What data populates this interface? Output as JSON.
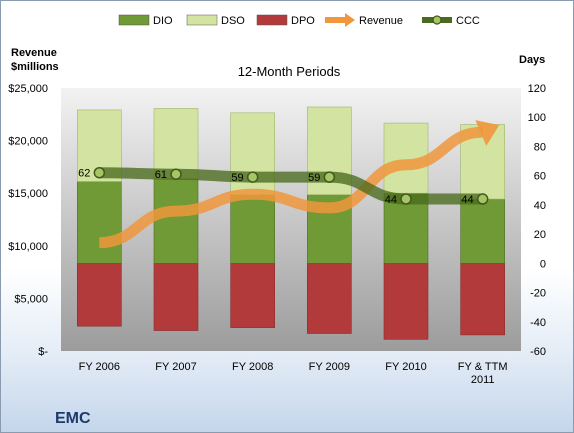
{
  "chart_data": {
    "type": "bar",
    "title": "12-Month Periods",
    "left_axis_label": [
      "Revenue",
      "$millions"
    ],
    "right_axis_label": "Days",
    "company": "EMC",
    "categories": [
      [
        "FY 2006"
      ],
      [
        "FY 2007"
      ],
      [
        "FY 2008"
      ],
      [
        "FY 2009"
      ],
      [
        "FY 2010"
      ],
      [
        "FY & TTM",
        "2011"
      ]
    ],
    "left_axis": {
      "min": 0,
      "max": 25000,
      "step": 5000,
      "tick_labels": [
        "$-",
        "$5,000",
        "$10,000",
        "$15,000",
        "$20,000",
        "$25,000"
      ]
    },
    "right_axis": {
      "min": -60,
      "max": 120,
      "step": 20,
      "tick_labels": [
        "-60",
        "-40",
        "-20",
        "0",
        "20",
        "40",
        "60",
        "80",
        "100",
        "120"
      ]
    },
    "series": [
      {
        "name": "DIO",
        "axis": "right",
        "kind": "stacked-bar",
        "values": [
          56,
          58,
          47,
          47,
          48,
          44
        ],
        "color": "#6f9a35"
      },
      {
        "name": "DSO",
        "axis": "right",
        "kind": "stacked-bar",
        "values": [
          49,
          48,
          56,
          60,
          48,
          51
        ],
        "color": "#d3e4a2"
      },
      {
        "name": "DPO",
        "axis": "right",
        "kind": "negative-bar",
        "values": [
          -43,
          -46,
          -44,
          -48,
          -52,
          -49
        ],
        "color": "#b23a3a"
      },
      {
        "name": "Revenue",
        "axis": "left",
        "kind": "arrow-line",
        "values": [
          10300,
          13300,
          14900,
          13600,
          17700,
          20800
        ],
        "color": "#f0963c"
      },
      {
        "name": "CCC",
        "axis": "right",
        "kind": "line",
        "values": [
          62,
          61,
          59,
          59,
          44,
          44
        ],
        "data_labels": [
          "62",
          "61",
          "59",
          "59",
          "44",
          "44"
        ],
        "color": "#4a6a1e"
      }
    ],
    "legend": {
      "position": "top",
      "items": [
        "DIO",
        "DSO",
        "DPO",
        "Revenue",
        "CCC"
      ]
    },
    "grid": false
  }
}
